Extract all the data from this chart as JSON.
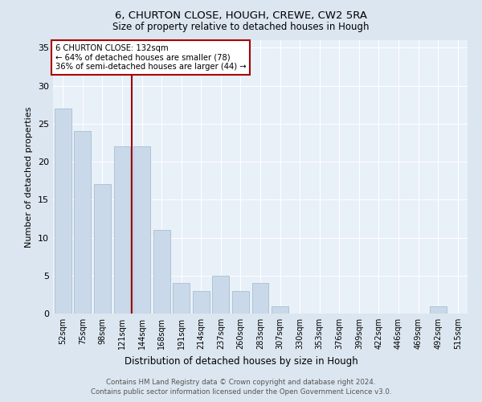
{
  "title": "6, CHURTON CLOSE, HOUGH, CREWE, CW2 5RA",
  "subtitle": "Size of property relative to detached houses in Hough",
  "xlabel": "Distribution of detached houses by size in Hough",
  "ylabel": "Number of detached properties",
  "categories": [
    "52sqm",
    "75sqm",
    "98sqm",
    "121sqm",
    "144sqm",
    "168sqm",
    "191sqm",
    "214sqm",
    "237sqm",
    "260sqm",
    "283sqm",
    "307sqm",
    "330sqm",
    "353sqm",
    "376sqm",
    "399sqm",
    "422sqm",
    "446sqm",
    "469sqm",
    "492sqm",
    "515sqm"
  ],
  "values": [
    27,
    24,
    17,
    22,
    22,
    11,
    4,
    3,
    5,
    3,
    4,
    1,
    0,
    0,
    0,
    0,
    0,
    0,
    0,
    1,
    0
  ],
  "bar_color": "#c9d9ea",
  "bar_edge_color": "#aabdd0",
  "annotation_line1": "6 CHURTON CLOSE: 132sqm",
  "annotation_line2": "← 64% of detached houses are smaller (78)",
  "annotation_line3": "36% of semi-detached houses are larger (44) →",
  "annotation_box_color": "#aa0000",
  "ylim": [
    0,
    36
  ],
  "yticks": [
    0,
    5,
    10,
    15,
    20,
    25,
    30,
    35
  ],
  "footer_line1": "Contains HM Land Registry data © Crown copyright and database right 2024.",
  "footer_line2": "Contains public sector information licensed under the Open Government Licence v3.0.",
  "bg_color": "#dce6f0",
  "plot_bg_color": "#e8f0f8"
}
